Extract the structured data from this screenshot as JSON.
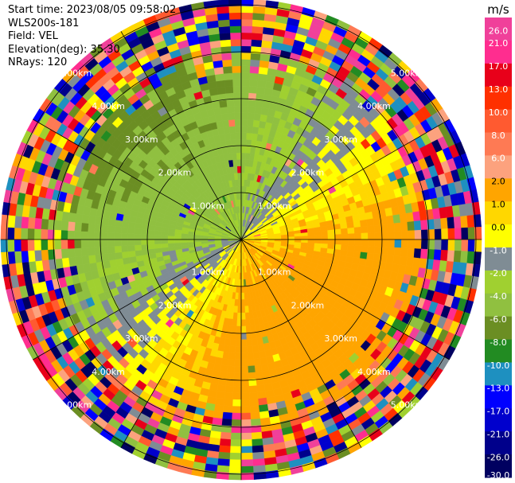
{
  "header": {
    "start_time": "Start time: 2023/08/05 09:58:02",
    "instrument": "WLS200s-181",
    "field": "Field: VEL",
    "elevation": "Elevation(deg): 35.30",
    "nrays": "NRays: 120"
  },
  "chart_data": {
    "type": "heatmap",
    "projection": "polar-ppi",
    "field": "VEL",
    "nrays": 120,
    "elevation_deg": 35.3,
    "range_rings_km": [
      1,
      2,
      3,
      4,
      5
    ],
    "ring_labels": [
      "1.00km",
      "2.00km",
      "3.00km",
      "4.00km",
      "5.00km"
    ],
    "spokes_deg_step": 30,
    "colorbar": {
      "unit": "m/s",
      "range": [
        -30,
        30
      ],
      "ticks": [
        "26.0",
        "21.0",
        "17.0",
        "13.0",
        "10.0",
        "8.0",
        "6.0",
        "2.0",
        "1.0",
        "0.0",
        "-1.0",
        "-2.0",
        "-4.0",
        "-6.0",
        "-8.0",
        "-10.0",
        "-13.0",
        "-17.0",
        "-21.0",
        "-26.0",
        "-30.0"
      ],
      "tick_values": [
        26,
        21,
        17,
        13,
        10,
        8,
        6,
        2,
        1,
        0,
        -1,
        -2,
        -4,
        -6,
        -8,
        -10,
        -13,
        -17,
        -21,
        -26,
        -30
      ],
      "bins": [
        {
          "lo": 26,
          "hi": 30,
          "color": "#f0409a"
        },
        {
          "lo": 21,
          "hi": 26,
          "color": "#ff2d8f"
        },
        {
          "lo": 17,
          "hi": 21,
          "color": "#e8001a"
        },
        {
          "lo": 13,
          "hi": 17,
          "color": "#ff3000"
        },
        {
          "lo": 10,
          "hi": 13,
          "color": "#ff5a30"
        },
        {
          "lo": 8,
          "hi": 10,
          "color": "#fe7a54"
        },
        {
          "lo": 6,
          "hi": 8,
          "color": "#fca27e"
        },
        {
          "lo": 2,
          "hi": 6,
          "color": "#ffa500"
        },
        {
          "lo": 1,
          "hi": 2,
          "color": "#ffd700"
        },
        {
          "lo": 0,
          "hi": 1,
          "color": "#ffff00"
        },
        {
          "lo": -1,
          "hi": 0,
          "color": "#7f8c94"
        },
        {
          "lo": -2,
          "hi": -1,
          "color": "#a0d030"
        },
        {
          "lo": -4,
          "hi": -2,
          "color": "#90c040"
        },
        {
          "lo": -6,
          "hi": -4,
          "color": "#6b8e23"
        },
        {
          "lo": -8,
          "hi": -6,
          "color": "#228b22"
        },
        {
          "lo": -10,
          "hi": -8,
          "color": "#1e90c0"
        },
        {
          "lo": -13,
          "hi": -10,
          "color": "#0000ff"
        },
        {
          "lo": -17,
          "hi": -13,
          "color": "#0000cd"
        },
        {
          "lo": -21,
          "hi": -17,
          "color": "#00008b"
        },
        {
          "lo": -26,
          "hi": -21,
          "color": "#000060"
        }
      ]
    }
  }
}
